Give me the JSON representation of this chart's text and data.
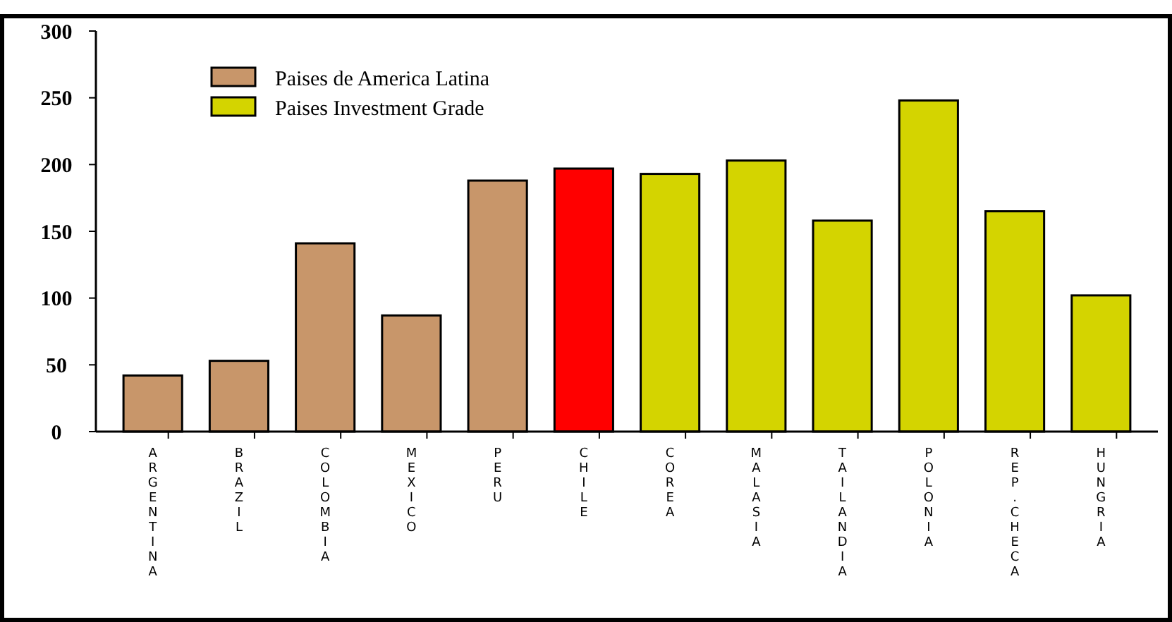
{
  "chart_data": {
    "type": "bar",
    "categories": [
      "ARGENTINA",
      "BRAZIL",
      "COLOMBIA",
      "MEXICO",
      "PERU",
      "CHILE",
      "COREA",
      "MALASIA",
      "TAILANDIA",
      "POLONIA",
      "REP.CHECA",
      "HUNGRIA"
    ],
    "series": [
      {
        "name": "Paises de America Latina",
        "color": "#c8966a",
        "colors": [
          "#c8966a",
          "#c8966a",
          "#c8966a",
          "#c8966a",
          "#c8966a",
          "#ff0000",
          null,
          null,
          null,
          null,
          null,
          null
        ],
        "values": [
          42,
          53,
          141,
          87,
          188,
          197,
          null,
          null,
          null,
          null,
          null,
          null
        ]
      },
      {
        "name": "Paises Investment Grade",
        "color": "#d4d400",
        "values": [
          null,
          null,
          null,
          null,
          null,
          null,
          193,
          203,
          158,
          248,
          165,
          102
        ]
      }
    ],
    "ylim": [
      0,
      300
    ],
    "yticks": [
      0,
      50,
      100,
      150,
      200,
      250,
      300
    ],
    "grid": false,
    "legend": "top left"
  }
}
